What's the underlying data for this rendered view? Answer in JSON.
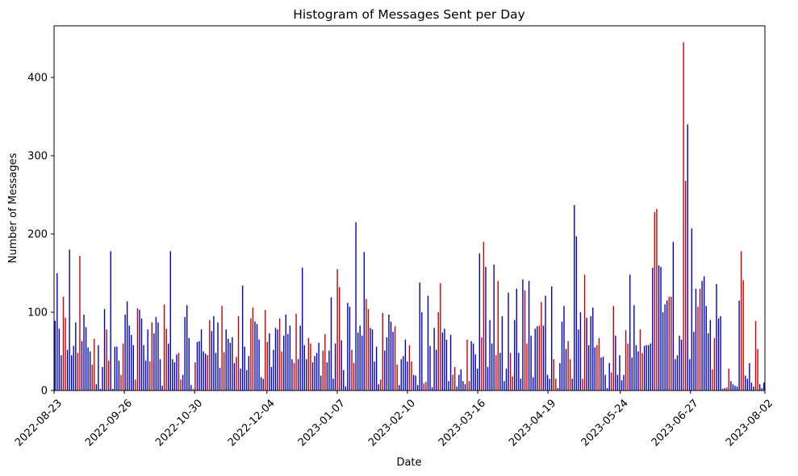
{
  "chart_data": {
    "type": "bar",
    "title": "Histogram of Messages Sent per Day",
    "xlabel": "Date",
    "ylabel": "Number of Messages",
    "ylim": [
      0,
      466
    ],
    "yticks": [
      0,
      100,
      200,
      300,
      400
    ],
    "x_start": "2022-08-23",
    "x_end": "2023-08-02",
    "xtick_labels": [
      "2022-08-23",
      "2022-09-26",
      "2022-10-30",
      "2022-12-04",
      "2023-01-07",
      "2023-02-10",
      "2023-03-16",
      "2023-04-19",
      "2023-05-24",
      "2023-06-27",
      "2023-08-02"
    ],
    "grid": false,
    "legend": "none",
    "colors": {
      "weekday": "#0000cc",
      "weekend": "#cc0000"
    },
    "highlight_pattern": "weekend bars in red",
    "values": [
      89,
      150,
      79,
      45,
      120,
      93,
      52,
      180,
      45,
      57,
      87,
      48,
      172,
      63,
      97,
      81,
      55,
      50,
      33,
      66,
      8,
      58,
      2,
      30,
      104,
      78,
      38,
      178,
      2,
      56,
      56,
      38,
      20,
      60,
      97,
      114,
      83,
      71,
      58,
      14,
      105,
      103,
      92,
      58,
      38,
      78,
      37,
      87,
      73,
      94,
      87,
      40,
      6,
      110,
      79,
      60,
      178,
      40,
      36,
      46,
      48,
      14,
      20,
      94,
      109,
      67,
      7,
      2,
      36,
      62,
      63,
      78,
      50,
      47,
      45,
      90,
      76,
      95,
      48,
      87,
      29,
      108,
      49,
      78,
      66,
      61,
      68,
      35,
      43,
      95,
      28,
      134,
      56,
      26,
      44,
      92,
      106,
      88,
      85,
      65,
      17,
      15,
      103,
      62,
      73,
      30,
      52,
      80,
      78,
      92,
      50,
      70,
      97,
      72,
      83,
      40,
      35,
      98,
      40,
      83,
      157,
      58,
      40,
      67,
      60,
      36,
      44,
      48,
      61,
      19,
      51,
      72,
      36,
      51,
      119,
      15,
      60,
      155,
      132,
      64,
      26,
      5,
      112,
      107,
      52,
      35,
      215,
      74,
      83,
      70,
      177,
      117,
      104,
      80,
      78,
      37,
      56,
      8,
      14,
      99,
      51,
      68,
      97,
      88,
      75,
      82,
      33,
      7,
      40,
      44,
      65,
      37,
      58,
      37,
      20,
      19,
      7,
      138,
      100,
      9,
      11,
      121,
      57,
      4,
      80,
      52,
      100,
      137,
      74,
      79,
      65,
      12,
      71,
      20,
      30,
      5,
      20,
      27,
      12,
      8,
      65,
      12,
      63,
      60,
      46,
      28,
      175,
      68,
      190,
      158,
      30,
      90,
      60,
      161,
      45,
      140,
      48,
      95,
      12,
      28,
      125,
      48,
      18,
      90,
      130,
      48,
      15,
      142,
      128,
      60,
      140,
      70,
      17,
      79,
      82,
      83,
      113,
      83,
      121,
      20,
      15,
      133,
      40,
      15,
      3,
      35,
      88,
      108,
      53,
      63,
      40,
      15,
      237,
      197,
      78,
      100,
      15,
      148,
      93,
      58,
      95,
      106,
      55,
      58,
      67,
      42,
      43,
      20,
      3,
      35,
      23,
      108,
      70,
      20,
      45,
      13,
      20,
      77,
      60,
      148,
      42,
      109,
      58,
      50,
      78,
      48,
      57,
      58,
      58,
      60,
      157,
      228,
      232,
      160,
      158,
      100,
      110,
      115,
      120,
      120,
      190,
      40,
      45,
      70,
      65,
      445,
      268,
      340,
      40,
      207,
      75,
      130,
      107,
      130,
      140,
      146,
      108,
      73,
      90,
      27,
      67,
      136,
      92,
      95,
      2,
      3,
      4,
      28,
      12,
      8,
      6,
      5,
      115,
      178,
      141,
      19,
      15,
      35,
      10,
      5,
      89,
      53,
      8,
      3,
      10
    ]
  }
}
